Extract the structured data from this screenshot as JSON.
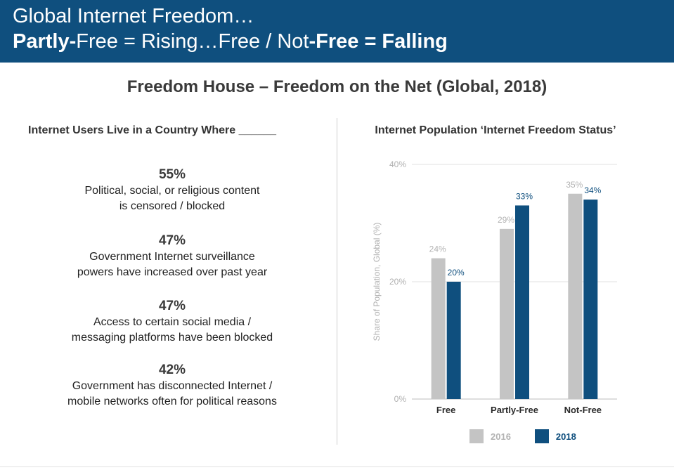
{
  "header": {
    "line1": "Global Internet Freedom…",
    "line2_parts": [
      {
        "text": "Partly-",
        "bold": true
      },
      {
        "text": "Free = Rising…Free / Not",
        "bold": false
      },
      {
        "text": "-Free = Falling",
        "bold": true
      }
    ]
  },
  "subtitle": "Freedom House – Freedom on the Net (Global, 2018)",
  "left": {
    "title": "Internet Users Live in a Country Where ______",
    "stats": [
      {
        "pct": "55%",
        "line1": "Political, social, or religious content",
        "line2": "is censored / blocked"
      },
      {
        "pct": "47%",
        "line1": "Government Internet surveillance",
        "line2": "powers have increased over past year"
      },
      {
        "pct": "47%",
        "line1": "Access to certain social media /",
        "line2": "messaging platforms have been blocked"
      },
      {
        "pct": "42%",
        "line1": "Government has disconnected Internet /",
        "line2": "mobile networks often for political reasons"
      }
    ]
  },
  "chart_data": {
    "type": "bar",
    "title": "Internet Population ‘Internet Freedom Status’",
    "ylabel": "Share of Population, Global (%)",
    "xlabel": "",
    "categories": [
      "Free",
      "Partly-Free",
      "Not-Free"
    ],
    "series": [
      {
        "name": "2016",
        "values": [
          24,
          29,
          35
        ],
        "color": "#c4c4c4",
        "label_color": "#b3b3b3"
      },
      {
        "name": "2018",
        "values": [
          20,
          33,
          34
        ],
        "color": "#0f4f7e",
        "label_color": "#0f4f7e"
      }
    ],
    "ylim": [
      0,
      40
    ],
    "yticks": [
      "0%",
      "20%",
      "40%"
    ],
    "ytick_values": [
      0,
      20,
      40
    ],
    "grid": true,
    "legend": "bottom"
  },
  "colors": {
    "header_bg": "#0f4f7e",
    "series_2016": "#c4c4c4",
    "series_2018": "#0f4f7e"
  }
}
